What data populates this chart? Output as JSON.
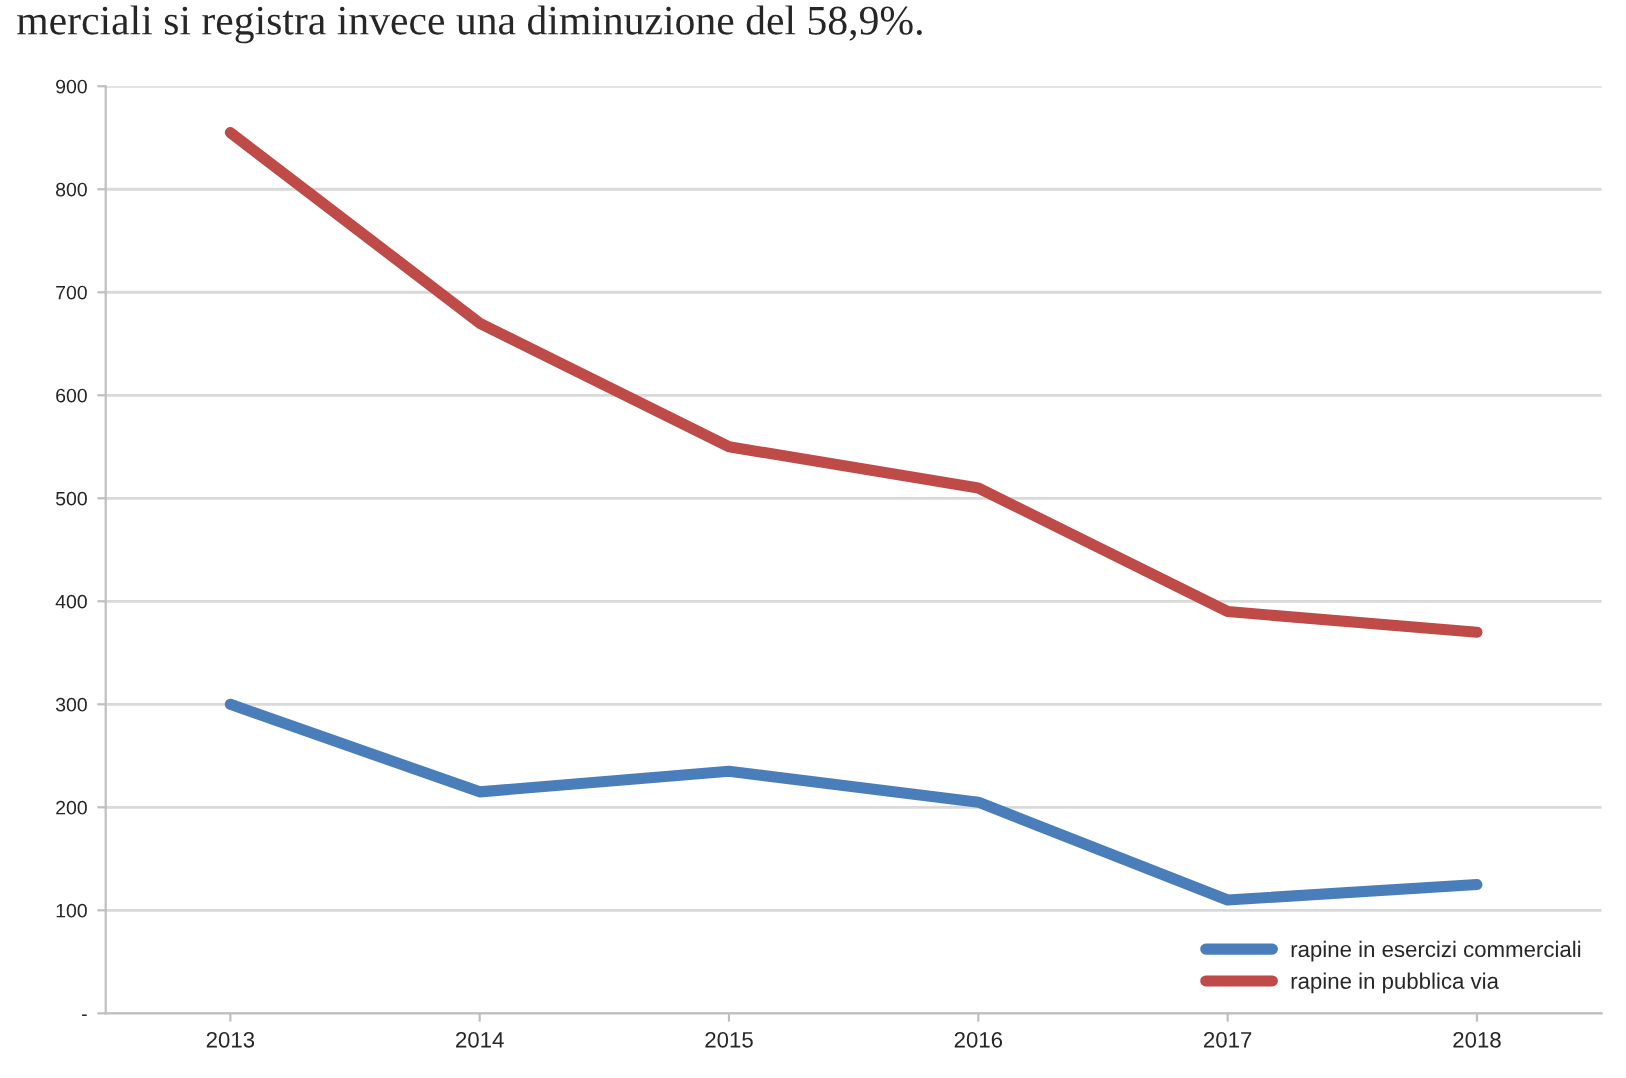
{
  "chart_data": {
    "type": "line",
    "annotations": [
      "merciali si registra invece una diminuzione del 58,9%."
    ],
    "categories": [
      "2013",
      "2014",
      "2015",
      "2016",
      "2017",
      "2018"
    ],
    "series": [
      {
        "name": "rapine in esercizi commerciali",
        "color": "#4a7ebb",
        "values": [
          300,
          215,
          235,
          205,
          110,
          125
        ]
      },
      {
        "name": "rapine in pubblica via",
        "color": "#be4b48",
        "values": [
          855,
          670,
          550,
          510,
          390,
          370
        ]
      }
    ],
    "ylim": [
      0,
      900
    ],
    "yticks": [
      {
        "value": 0,
        "label": "-"
      },
      100,
      200,
      300,
      400,
      500,
      600,
      700,
      800,
      900
    ],
    "grid": "y",
    "legend": "bottom right",
    "marker": "none",
    "line_style": "solid"
  }
}
